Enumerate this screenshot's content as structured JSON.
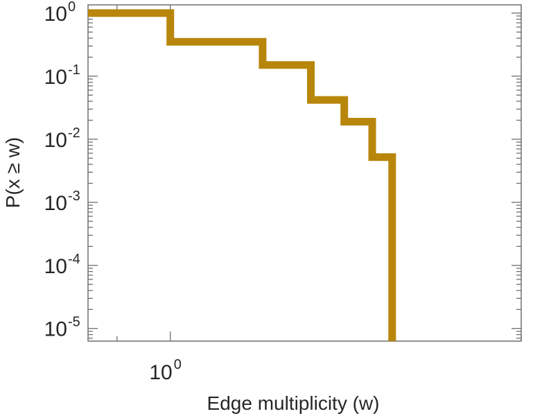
{
  "chart_data": {
    "type": "line",
    "style": "step",
    "xscale": "log",
    "yscale": "log",
    "xlabel": "Edge multiplicity (w)",
    "ylabel": "P(x ≥ w)",
    "xlim": [
      0.85,
      2.0
    ],
    "ylim": [
      6.3e-06,
      1.35
    ],
    "x_ticks": [
      {
        "value": 1,
        "base": "10",
        "exp": "0"
      }
    ],
    "y_ticks": [
      {
        "value": 1,
        "base": "10",
        "exp": "0"
      },
      {
        "value": 0.1,
        "base": "10",
        "exp": "-1"
      },
      {
        "value": 0.01,
        "base": "10",
        "exp": "-2"
      },
      {
        "value": 0.001,
        "base": "10",
        "exp": "-3"
      },
      {
        "value": 0.0001,
        "base": "10",
        "exp": "-4"
      },
      {
        "value": 1e-05,
        "base": "10",
        "exp": "-5"
      }
    ],
    "series": [
      {
        "color": "#b8860b",
        "points": [
          [
            0.85,
            1.0
          ],
          [
            1.0,
            1.0
          ],
          [
            1.0,
            0.35
          ],
          [
            1.2,
            0.35
          ],
          [
            1.2,
            0.15
          ],
          [
            1.32,
            0.15
          ],
          [
            1.32,
            0.042
          ],
          [
            1.41,
            0.042
          ],
          [
            1.41,
            0.019
          ],
          [
            1.49,
            0.019
          ],
          [
            1.49,
            0.0052
          ],
          [
            1.55,
            0.0052
          ],
          [
            1.55,
            6.3e-06
          ]
        ]
      }
    ],
    "grid": false,
    "legend": "none"
  }
}
